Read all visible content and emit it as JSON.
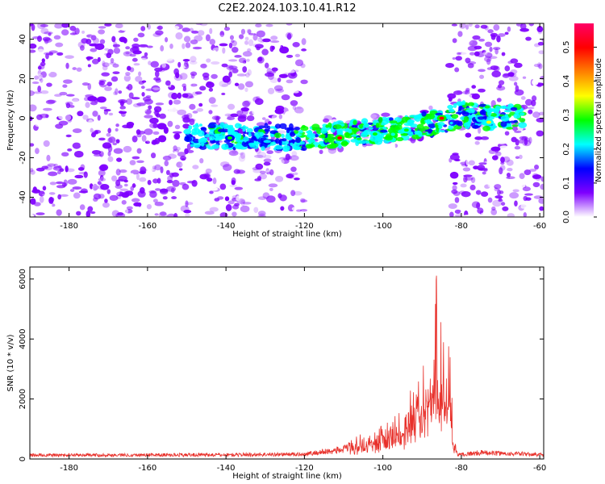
{
  "title": "C2E2.2024.103.10.41.R12",
  "chart_data": [
    {
      "type": "heatmap",
      "xlabel": "Height of straight line (km)",
      "ylabel": "Frequency (Hz)",
      "xlim": [
        -190,
        -59
      ],
      "ylim": [
        -50,
        48
      ],
      "xticks": [
        -180,
        -160,
        -140,
        -120,
        -100,
        -80,
        -60
      ],
      "yticks": [
        -40,
        -20,
        0,
        20,
        40
      ],
      "colorbar": {
        "label": "Normalized spectral amplitude",
        "range": [
          0,
          0.57
        ],
        "ticks": [
          0.0,
          0.1,
          0.2,
          0.3,
          0.4,
          0.5
        ],
        "colormap": [
          "#ffffff",
          "#7f00ff",
          "#0000ff",
          "#00ffff",
          "#00ff00",
          "#ffff00",
          "#ff8000",
          "#ff0000",
          "#ff0066"
        ]
      },
      "features": {
        "noise_band": {
          "x": [
            -190,
            -59
          ],
          "amplitude": 0.07
        },
        "gap_regions": [
          [
            -120,
            -83
          ]
        ],
        "signal_track": [
          {
            "x": -150,
            "y": -9
          },
          {
            "x": -120,
            "y": -10
          },
          {
            "x": -110,
            "y": -8
          },
          {
            "x": -100,
            "y": -6
          },
          {
            "x": -90,
            "y": -4
          },
          {
            "x": -84,
            "y": -1
          },
          {
            "x": -80,
            "y": 2
          },
          {
            "x": -70,
            "y": 0
          },
          {
            "x": -64,
            "y": 1
          }
        ],
        "peaks": [
          {
            "x": -111,
            "y": -10,
            "amplitude": 0.5
          },
          {
            "x": -85,
            "y": 0,
            "amplitude": 0.5
          },
          {
            "x": -73,
            "y": -2,
            "amplitude": 0.35
          },
          {
            "x": -102,
            "y": -8,
            "amplitude": 0.3
          },
          {
            "x": -94,
            "y": -6,
            "amplitude": 0.3
          },
          {
            "x": -139,
            "y": -10,
            "amplitude": 0.25
          }
        ]
      }
    },
    {
      "type": "line",
      "xlabel": "Height of straight line (km)",
      "ylabel": "SNR (10 * v/v)",
      "xlim": [
        -190,
        -59
      ],
      "ylim": [
        0,
        6400
      ],
      "xticks": [
        -180,
        -160,
        -140,
        -120,
        -100,
        -80,
        -60
      ],
      "yticks": [
        0,
        2000,
        4000,
        6000
      ],
      "color": "#e8302a",
      "envelope": [
        {
          "x": -190,
          "y": 180
        },
        {
          "x": -140,
          "y": 200
        },
        {
          "x": -120,
          "y": 230
        },
        {
          "x": -110,
          "y": 450
        },
        {
          "x": -105,
          "y": 900
        },
        {
          "x": -100,
          "y": 1200
        },
        {
          "x": -95,
          "y": 1600
        },
        {
          "x": -92,
          "y": 2800
        },
        {
          "x": -89,
          "y": 3200
        },
        {
          "x": -87,
          "y": 4000
        },
        {
          "x": -86.3,
          "y": 6350
        },
        {
          "x": -85.5,
          "y": 4800
        },
        {
          "x": -84,
          "y": 3600
        },
        {
          "x": -83,
          "y": 3800
        },
        {
          "x": -82,
          "y": 900
        },
        {
          "x": -81,
          "y": 200
        },
        {
          "x": -75,
          "y": 300
        },
        {
          "x": -59,
          "y": 200
        }
      ]
    }
  ]
}
